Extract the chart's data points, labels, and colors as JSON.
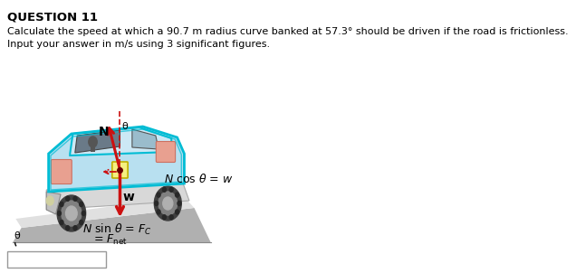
{
  "title": "QUESTION 11",
  "line1": "Calculate the speed at which a 90.7 m radius curve banked at 57.3° should be driven if the road is frictionless.",
  "line2": "Input your answer in m/s using 3 significant figures.",
  "eq_cos": "N cos θ = w",
  "eq_sin_line1": "N sin θ = F_C",
  "eq_sin_line2": "= F_net",
  "label_N": "N",
  "label_w": "w",
  "label_theta": "θ",
  "bg": "#ffffff",
  "car_light_blue": "#b8e0f0",
  "car_mid_blue": "#8ecae6",
  "car_cyan_border": "#00bcd4",
  "road_gray": "#c8c8c8",
  "road_light": "#e0e0e0",
  "arrow_red": "#cc1010",
  "salmon": "#e8a090",
  "dark_gray": "#404040",
  "wheel_gray": "#606060"
}
